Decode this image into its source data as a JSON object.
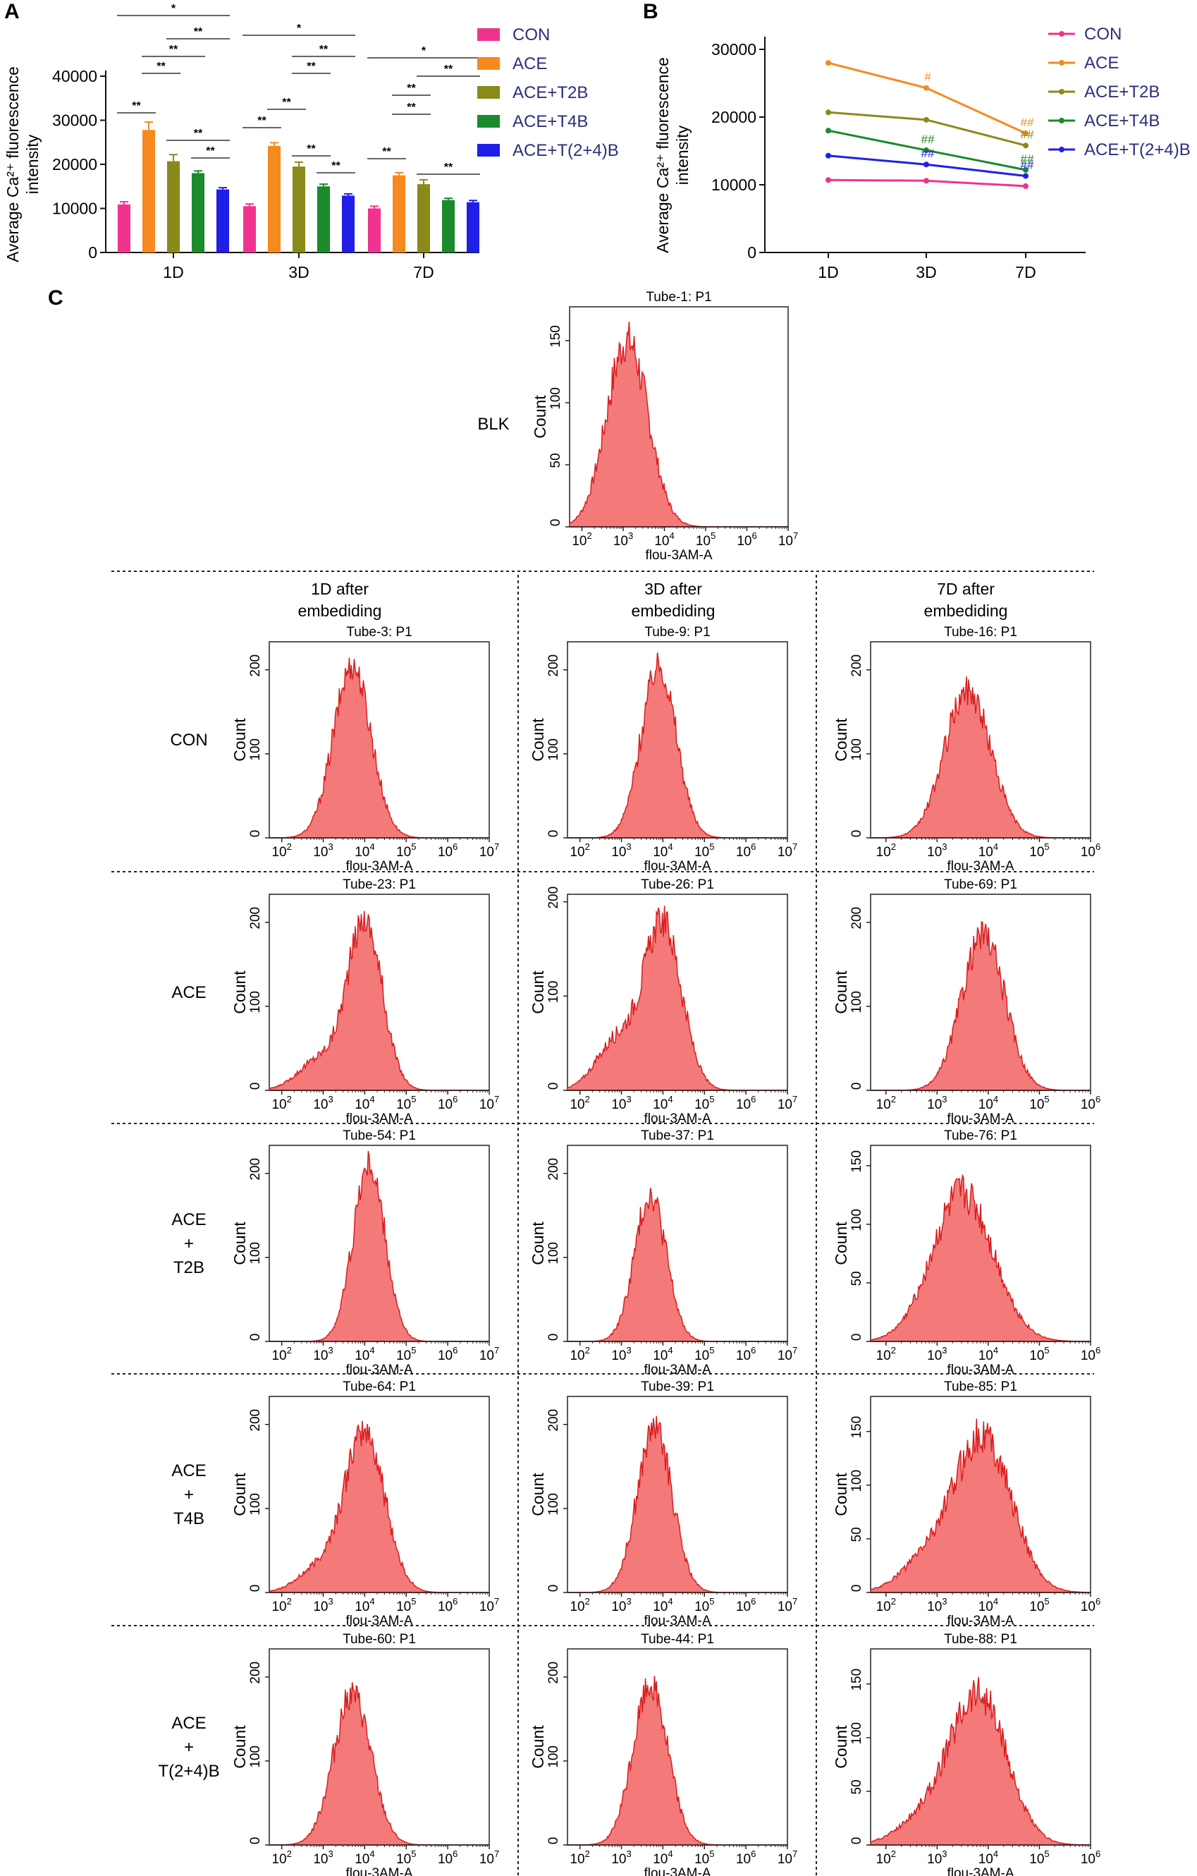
{
  "panels": {
    "a": "A",
    "b": "B",
    "c": "C"
  },
  "colors": {
    "CON": "#f0338f",
    "ACE": "#f68a1f",
    "ACE+T2B": "#8a8a1a",
    "ACE+T4B": "#1a8a2a",
    "ACE+T(2+4)B": "#1f1fe6",
    "hist_fill": "#f47a7a",
    "hist_line": "#d81f1f"
  },
  "chart_data": [
    {
      "id": "A",
      "type": "bar",
      "title": "",
      "xlabel": "",
      "ylabel": "Average Ca²⁺ fluorescence intensity",
      "ylabel_lines": [
        "Average Ca²⁺ fluorescence",
        "intensity"
      ],
      "ylim": [
        0,
        40000
      ],
      "yticks": [
        "0",
        "10000",
        "20000",
        "30000",
        "40000"
      ],
      "categories": [
        "1D",
        "3D",
        "7D"
      ],
      "series": [
        {
          "name": "CON",
          "values": [
            10900,
            10500,
            10000
          ]
        },
        {
          "name": "ACE",
          "values": [
            27800,
            24200,
            17500
          ]
        },
        {
          "name": "ACE+T2B",
          "values": [
            20700,
            19500,
            15500
          ]
        },
        {
          "name": "ACE+T4B",
          "values": [
            18000,
            15000,
            11900
          ]
        },
        {
          "name": "ACE+T(2+4)B",
          "values": [
            14300,
            12900,
            11400
          ]
        }
      ],
      "errors": [
        [
          600,
          500,
          500
        ],
        [
          1800,
          700,
          600
        ],
        [
          1500,
          1000,
          1000
        ],
        [
          500,
          500,
          400
        ],
        [
          400,
          400,
          400
        ]
      ],
      "brackets": [
        {
          "group": 0,
          "from": 0,
          "to": 4,
          "level": 0,
          "label": "*"
        },
        {
          "group": 0,
          "from": 2,
          "to": 4,
          "level": 1,
          "label": "**"
        },
        {
          "group": 0,
          "from": 1,
          "to": 3,
          "level": 2,
          "label": "**"
        },
        {
          "group": 0,
          "from": 1,
          "to": 2,
          "level": 3,
          "label": "**"
        },
        {
          "group": 0,
          "from": 0,
          "to": 1,
          "level": 4,
          "label": "**"
        },
        {
          "group": 0,
          "from": 2,
          "to": 4,
          "level": 5,
          "label": "**"
        },
        {
          "group": 0,
          "from": 3,
          "to": 4,
          "level": 6,
          "label": "**"
        },
        {
          "group": 1,
          "from": 0,
          "to": 4,
          "level": 0,
          "label": "*"
        },
        {
          "group": 1,
          "from": 2,
          "to": 4,
          "level": 1,
          "label": "**"
        },
        {
          "group": 1,
          "from": 2,
          "to": 3,
          "level": 2,
          "label": "**"
        },
        {
          "group": 1,
          "from": 1,
          "to": 2,
          "level": 3,
          "label": "**"
        },
        {
          "group": 1,
          "from": 0,
          "to": 1,
          "level": 4,
          "label": "**"
        },
        {
          "group": 1,
          "from": 2,
          "to": 3,
          "level": 5,
          "label": "**"
        },
        {
          "group": 1,
          "from": 3,
          "to": 4,
          "level": 6,
          "label": "**"
        },
        {
          "group": 2,
          "from": 0,
          "to": 4,
          "level": 0,
          "label": "*"
        },
        {
          "group": 2,
          "from": 2,
          "to": 4,
          "level": 1,
          "label": "**"
        },
        {
          "group": 2,
          "from": 1,
          "to": 2,
          "level": 2,
          "label": "**"
        },
        {
          "group": 2,
          "from": 1,
          "to": 2,
          "level": 3,
          "label": "**"
        },
        {
          "group": 2,
          "from": 0,
          "to": 1,
          "level": 4,
          "label": "**"
        },
        {
          "group": 2,
          "from": 2,
          "to": 4,
          "level": 5,
          "label": "**"
        }
      ],
      "legend": [
        "CON",
        "ACE",
        "ACE+T2B",
        "ACE+T4B",
        "ACE+T(2+4)B"
      ]
    },
    {
      "id": "B",
      "type": "line",
      "title": "",
      "xlabel": "",
      "ylabel": "Average Ca²⁺ fluorescence intensity",
      "ylabel_lines": [
        "Average Ca²⁺ fluorescence",
        "intensity"
      ],
      "ylim": [
        0,
        30000
      ],
      "yticks": [
        "0",
        "10000",
        "20000",
        "30000"
      ],
      "x": [
        "1D",
        "3D",
        "7D"
      ],
      "series": [
        {
          "name": "CON",
          "values": [
            10700,
            10600,
            9800
          ]
        },
        {
          "name": "ACE",
          "values": [
            28000,
            24300,
            17600
          ]
        },
        {
          "name": "ACE+T2B",
          "values": [
            20700,
            19600,
            15800
          ]
        },
        {
          "name": "ACE+T4B",
          "values": [
            18000,
            15100,
            12200
          ]
        },
        {
          "name": "ACE+T(2+4)B",
          "values": [
            14300,
            13000,
            11300
          ]
        }
      ],
      "annotations": [
        {
          "series": "ACE",
          "point": 1,
          "label": "#"
        },
        {
          "series": "ACE",
          "point": 2,
          "label": "##"
        },
        {
          "series": "ACE+T2B",
          "point": 2,
          "label": "##"
        },
        {
          "series": "ACE+T4B",
          "point": 1,
          "label": "##"
        },
        {
          "series": "ACE+T4B",
          "point": 2,
          "label": "##"
        },
        {
          "series": "ACE+T(2+4)B",
          "point": 1,
          "label": "##"
        },
        {
          "series": "ACE+T(2+4)B",
          "point": 2,
          "label": "##"
        }
      ],
      "legend": [
        "CON",
        "ACE",
        "ACE+T2B",
        "ACE+T4B",
        "ACE+T(2+4)B"
      ]
    },
    {
      "id": "C",
      "type": "histogram",
      "xlabel": "flou-3AM-A",
      "ylabel": "Count",
      "x_scale": "log10",
      "blank": {
        "label": "BLK",
        "title": "Tube-1: P1",
        "xrange": [
          1.7,
          7
        ],
        "ymax": 175,
        "yticks": [
          0,
          50,
          100,
          150
        ],
        "peak_log": 3.1,
        "peak_count": 150,
        "width": 0.5
      },
      "column_headers": [
        [
          "1D after",
          "embediding"
        ],
        [
          "3D after",
          "embediding"
        ],
        [
          "7D after",
          "embediding"
        ]
      ],
      "row_labels": [
        [
          "CON"
        ],
        [
          "ACE"
        ],
        [
          "ACE",
          "+",
          "T2B"
        ],
        [
          "ACE",
          "+",
          "T4B"
        ],
        [
          "ACE",
          "+",
          "T(2+4)B"
        ]
      ],
      "histograms": [
        [
          {
            "title": "Tube-3: P1",
            "xrange": [
              1.7,
              7
            ],
            "ymax": 230,
            "yticks": [
              0,
              100,
              200
            ],
            "peak_log": 3.7,
            "peak_count": 205,
            "width": 0.45
          },
          {
            "title": "Tube-9: P1",
            "xrange": [
              1.7,
              7
            ],
            "ymax": 230,
            "yticks": [
              0,
              100,
              200
            ],
            "peak_log": 3.9,
            "peak_count": 205,
            "width": 0.42
          },
          {
            "title": "Tube-16: P1",
            "xrange": [
              1.7,
              6
            ],
            "ymax": 230,
            "yticks": [
              0,
              100,
              200
            ],
            "peak_log": 3.6,
            "peak_count": 175,
            "width": 0.45
          }
        ],
        [
          {
            "title": "Tube-23: P1",
            "xrange": [
              1.7,
              7
            ],
            "ymax": 230,
            "yticks": [
              0,
              100,
              200
            ],
            "peak_log": 4.0,
            "peak_count": 200,
            "width": 0.42,
            "shoulder": 0.18
          },
          {
            "title": "Tube-26: P1",
            "xrange": [
              1.7,
              7
            ],
            "ymax": 205,
            "yticks": [
              0,
              100,
              200
            ],
            "peak_log": 4.0,
            "peak_count": 175,
            "width": 0.45,
            "shoulder": 0.3
          },
          {
            "title": "Tube-69: P1",
            "xrange": [
              1.7,
              6
            ],
            "ymax": 230,
            "yticks": [
              0,
              100,
              200
            ],
            "peak_log": 3.9,
            "peak_count": 185,
            "width": 0.42
          }
        ],
        [
          {
            "title": "Tube-54: P1",
            "xrange": [
              1.7,
              7
            ],
            "ymax": 230,
            "yticks": [
              0,
              100,
              200
            ],
            "peak_log": 4.1,
            "peak_count": 210,
            "width": 0.38
          },
          {
            "title": "Tube-37: P1",
            "xrange": [
              1.7,
              7
            ],
            "ymax": 230,
            "yticks": [
              0,
              100,
              200
            ],
            "peak_log": 3.7,
            "peak_count": 175,
            "width": 0.38
          },
          {
            "title": "Tube-76: P1",
            "xrange": [
              1.7,
              6
            ],
            "ymax": 165,
            "yticks": [
              0,
              50,
              100,
              150
            ],
            "peak_log": 3.5,
            "peak_count": 125,
            "width": 0.6
          }
        ],
        [
          {
            "title": "Tube-64: P1",
            "xrange": [
              1.7,
              7
            ],
            "ymax": 230,
            "yticks": [
              0,
              100,
              200
            ],
            "peak_log": 4.0,
            "peak_count": 190,
            "width": 0.48,
            "shoulder": 0.15
          },
          {
            "title": "Tube-39: P1",
            "xrange": [
              1.7,
              7
            ],
            "ymax": 230,
            "yticks": [
              0,
              100,
              200
            ],
            "peak_log": 3.8,
            "peak_count": 195,
            "width": 0.42
          },
          {
            "title": "Tube-85: P1",
            "xrange": [
              1.7,
              6
            ],
            "ymax": 180,
            "yticks": [
              0,
              50,
              100,
              150
            ],
            "peak_log": 3.9,
            "peak_count": 145,
            "width": 0.55,
            "shoulder": 0.2
          }
        ],
        [
          {
            "title": "Tube-60: P1",
            "xrange": [
              1.7,
              7
            ],
            "ymax": 230,
            "yticks": [
              0,
              100,
              200
            ],
            "peak_log": 3.7,
            "peak_count": 180,
            "width": 0.45
          },
          {
            "title": "Tube-44: P1",
            "xrange": [
              1.7,
              7
            ],
            "ymax": 230,
            "yticks": [
              0,
              100,
              200
            ],
            "peak_log": 3.7,
            "peak_count": 190,
            "width": 0.42
          },
          {
            "title": "Tube-88: P1",
            "xrange": [
              1.7,
              6
            ],
            "ymax": 180,
            "yticks": [
              0,
              50,
              100,
              150
            ],
            "peak_log": 3.8,
            "peak_count": 140,
            "width": 0.55,
            "shoulder": 0.15
          }
        ]
      ]
    }
  ]
}
